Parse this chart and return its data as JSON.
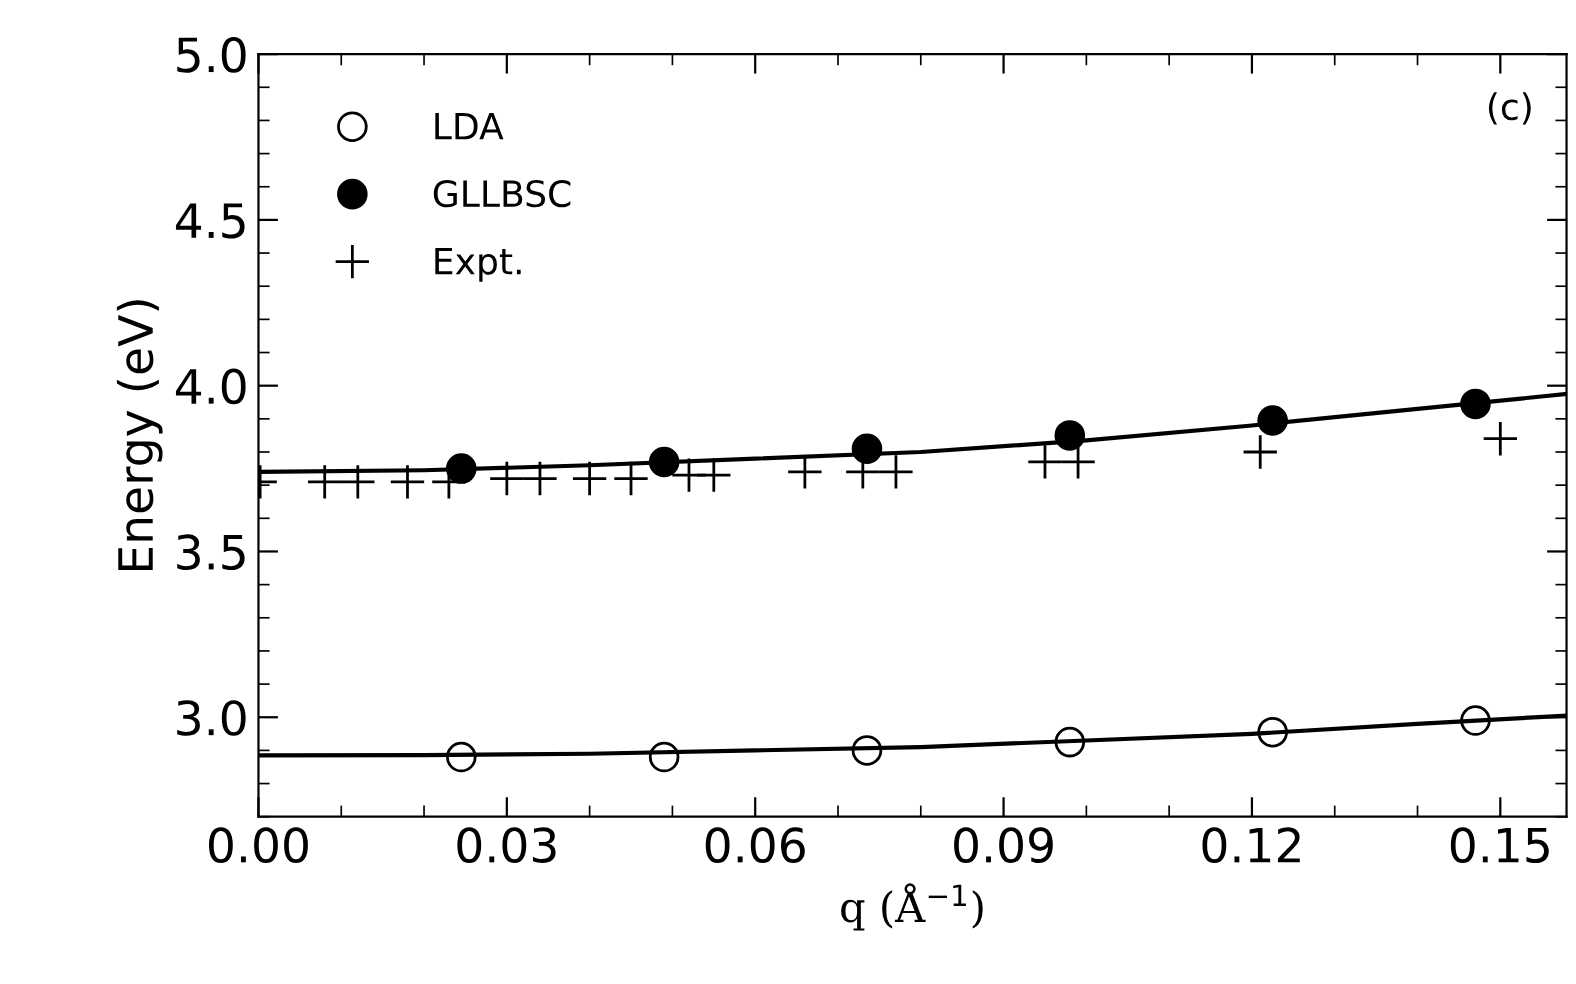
{
  "chart_data": {
    "type": "scatter",
    "xlabel": "q (Å$^{−1}$)",
    "ylabel": "Energy (eV)",
    "xlim": [
      0,
      0.158
    ],
    "ylim": [
      2.7,
      5.0
    ],
    "xticks": [
      {
        "value": 0,
        "label": "0.00"
      },
      0.03,
      0.06,
      0.09,
      0.12,
      0.15
    ],
    "yticks": [
      {
        "value": 3,
        "label": "3.0"
      },
      3.5,
      {
        "value": 4,
        "label": "4.0"
      },
      4.5,
      {
        "value": 5,
        "label": "5.0"
      }
    ],
    "grid": false,
    "legend": "top left",
    "annotations": [
      "(c)"
    ],
    "series": [
      {
        "name": "LDA",
        "marker": "circle",
        "color": "#000000",
        "x": [
          0.0245,
          0.049,
          0.0735,
          0.098,
          0.1225,
          0.147
        ],
        "values": [
          2.88,
          2.88,
          2.9,
          2.925,
          2.955,
          2.99
        ]
      },
      {
        "name": "GLLBSC",
        "marker": "circle",
        "color": "#000000",
        "x": [
          0.0245,
          0.049,
          0.0735,
          0.098,
          0.1225,
          0.147
        ],
        "values": [
          3.75,
          3.77,
          3.81,
          3.85,
          3.895,
          3.945
        ]
      },
      {
        "name": "Expt.",
        "marker": "cross",
        "color": "#000000",
        "x": [
          0.0002,
          0.008,
          0.012,
          0.018,
          0.023,
          0.03,
          0.034,
          0.04,
          0.045,
          0.052,
          0.055,
          0.066,
          0.073,
          0.077,
          0.095,
          0.099,
          0.121,
          0.15
        ],
        "values": [
          3.71,
          3.71,
          3.71,
          3.71,
          3.71,
          3.72,
          3.72,
          3.72,
          3.72,
          3.73,
          3.73,
          3.74,
          3.74,
          3.74,
          3.77,
          3.77,
          3.8,
          3.84
        ]
      },
      {
        "type": "line",
        "marker": "none",
        "color": "#000000",
        "x": [
          0,
          0.02,
          0.04,
          0.06,
          0.08,
          0.1,
          0.12,
          0.14,
          0.158
        ],
        "values": [
          3.74,
          3.745,
          3.76,
          3.78,
          3.8,
          3.835,
          3.88,
          3.93,
          3.975
        ]
      },
      {
        "type": "line",
        "marker": "none",
        "color": "#000000",
        "x": [
          0,
          0.02,
          0.04,
          0.06,
          0.08,
          0.1,
          0.12,
          0.14,
          0.158
        ],
        "values": [
          2.885,
          2.886,
          2.89,
          2.9,
          2.91,
          2.93,
          2.95,
          2.98,
          3.005
        ]
      }
    ]
  }
}
